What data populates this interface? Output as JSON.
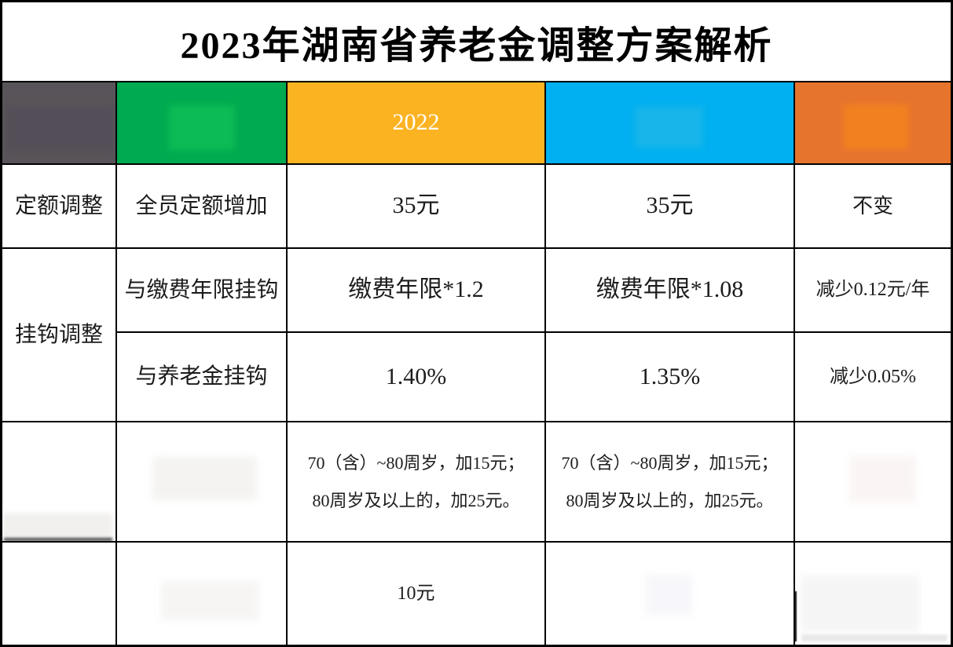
{
  "title": "2023年湖南省养老金调整方案解析",
  "colors": {
    "category_header": "#595459",
    "method_header": "#00aa50",
    "year2022_header": "#fcb322",
    "year2023_header": "#00b0f0",
    "change_header": "#e7742d",
    "grid_line": "#000000"
  },
  "header": {
    "year_2022_label": "2022"
  },
  "rows": {
    "fixed": {
      "category": "定额调整",
      "method": "全员定额增加",
      "y2022": "35元",
      "y2023": "35元",
      "change": "不变"
    },
    "linked": {
      "category": "挂钩调整"
    },
    "years": {
      "method": "与缴费年限挂钩",
      "y2022": "缴费年限*1.2",
      "y2023": "缴费年限*1.08",
      "change": "减少0.12元/年"
    },
    "pension": {
      "method": "与养老金挂钩",
      "y2022": "1.40%",
      "y2023": "1.35%",
      "change": "减少0.05%"
    },
    "age": {
      "y2022_line1": "70（含）~80周岁，加15元；",
      "y2022_line2": "80周岁及以上的，加25元。",
      "y2023_line1": "70（含）~80周岁，加15元；",
      "y2023_line2": "80周岁及以上的，加25元。"
    },
    "extra": {
      "y2022": "10元"
    }
  }
}
